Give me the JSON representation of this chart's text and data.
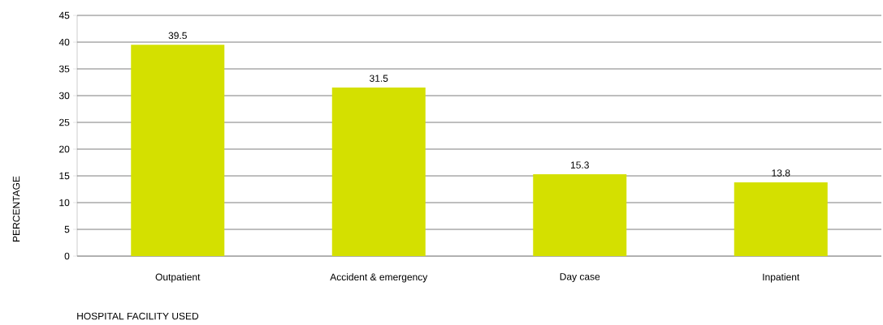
{
  "chart_data": {
    "type": "bar",
    "xlabel": "HOSPITAL FACILITY USED",
    "ylabel": "PERCENTAGE",
    "categories": [
      "Outpatient",
      "Accident & emergency",
      "Day case",
      "Inpatient"
    ],
    "values": [
      39.5,
      31.5,
      15.3,
      13.8
    ],
    "color": "#d4e000",
    "data_labels": true,
    "ylim": [
      0,
      45
    ],
    "yticks": [
      0,
      5,
      10,
      15,
      20,
      25,
      30,
      35,
      40,
      45
    ],
    "grid": "y"
  }
}
